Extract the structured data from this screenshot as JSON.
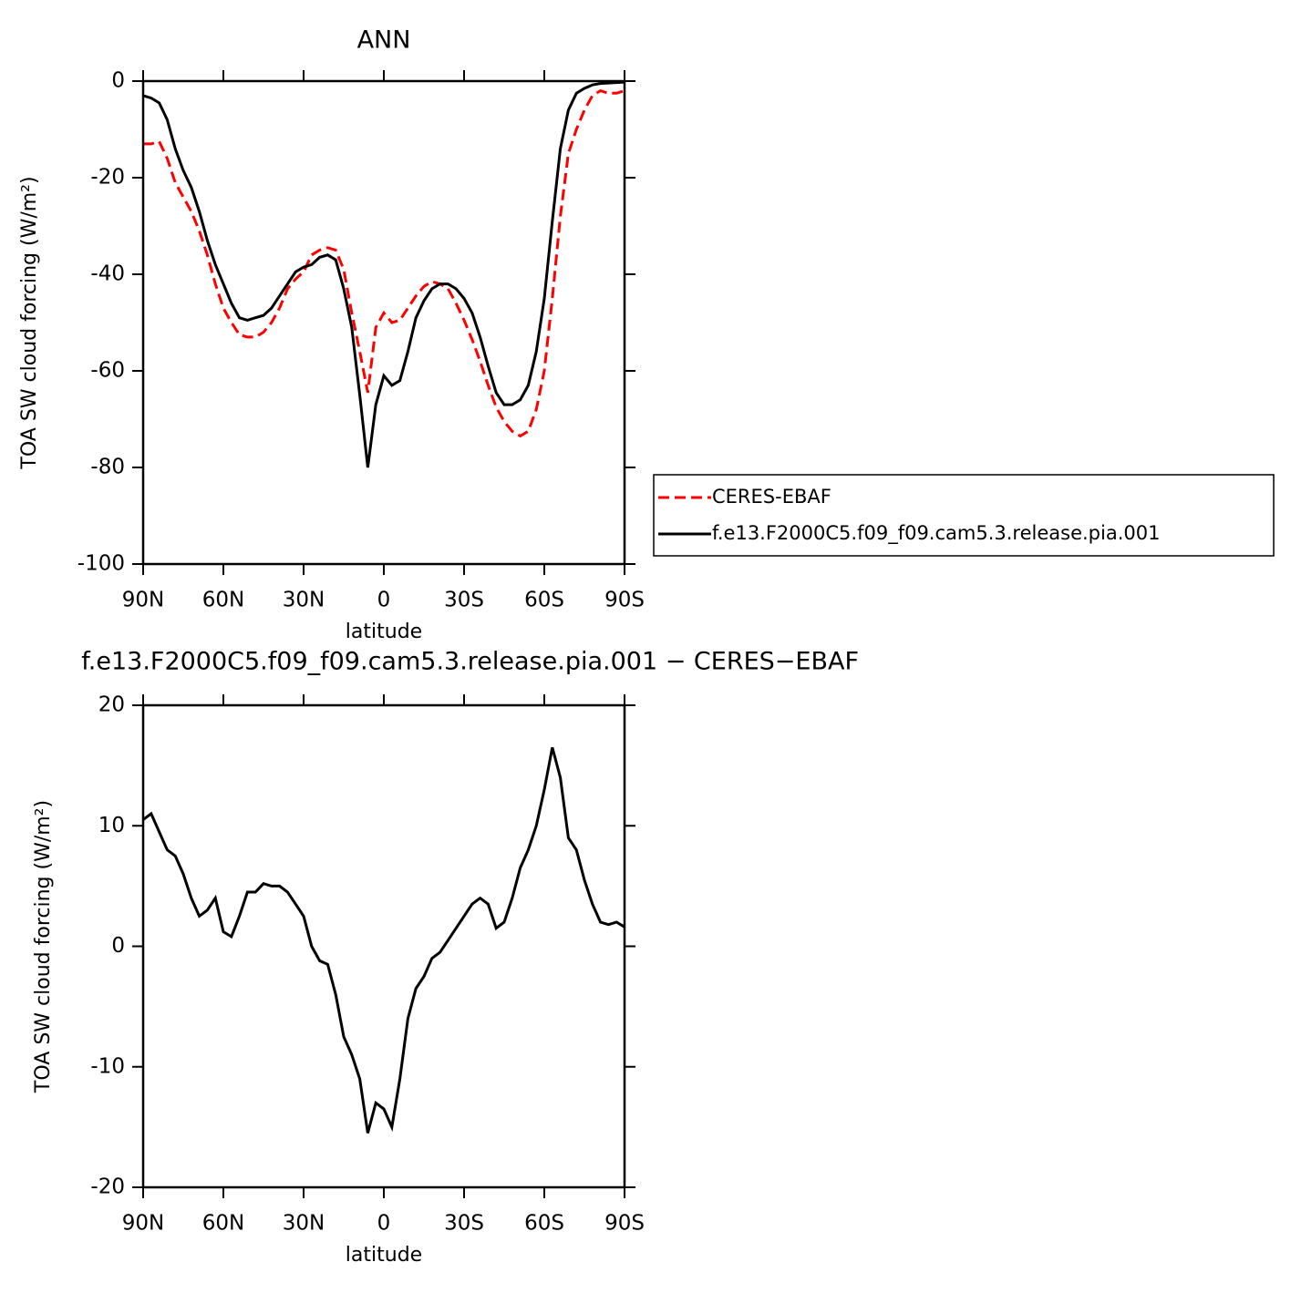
{
  "chart_data": [
    {
      "type": "line",
      "title": "ANN",
      "xlabel": "latitude",
      "ylabel": "TOA SW cloud forcing (W/m²)",
      "x": [
        90,
        87,
        84,
        81,
        78,
        75,
        72,
        69,
        66,
        63,
        60,
        57,
        54,
        51,
        48,
        45,
        42,
        39,
        36,
        33,
        30,
        27,
        24,
        21,
        18,
        15,
        12,
        9,
        6,
        3,
        0,
        -3,
        -6,
        -9,
        -12,
        -15,
        -18,
        -21,
        -24,
        -27,
        -30,
        -33,
        -36,
        -39,
        -42,
        -45,
        -48,
        -51,
        -54,
        -57,
        -60,
        -63,
        -66,
        -69,
        -72,
        -75,
        -78,
        -81,
        -84,
        -87,
        -90
      ],
      "series": [
        {
          "name": "CERES-EBAF",
          "color": "#ff0000",
          "line_style": "dashed",
          "values": [
            -13,
            -13,
            -12.5,
            -16,
            -21,
            -24,
            -27,
            -31,
            -36,
            -42,
            -47,
            -50,
            -52.5,
            -53,
            -53,
            -52,
            -50,
            -47,
            -43,
            -41,
            -39.5,
            -36,
            -35,
            -34.5,
            -35,
            -39,
            -48,
            -56,
            -64.5,
            -51,
            -48,
            -50,
            -49.5,
            -47,
            -44.5,
            -42.5,
            -41.5,
            -42,
            -43,
            -46,
            -49.5,
            -53.5,
            -58,
            -63,
            -67.5,
            -70.5,
            -72.5,
            -73.5,
            -72.5,
            -68,
            -60,
            -45,
            -28,
            -15,
            -10,
            -6,
            -3,
            -2,
            -2.5,
            -2.5,
            -2
          ]
        },
        {
          "name": "f.e13.F2000C5.f09_f09.cam5.3.release.pia.001",
          "color": "#000000",
          "line_style": "solid",
          "values": [
            -3,
            -3.5,
            -4.5,
            -8,
            -14,
            -18.5,
            -22,
            -27,
            -33,
            -38,
            -42,
            -46,
            -49,
            -49.5,
            -49,
            -48.5,
            -47,
            -44.5,
            -42,
            -39.5,
            -38.5,
            -38,
            -36.5,
            -36,
            -37,
            -43,
            -51,
            -65,
            -80,
            -67,
            -61,
            -63,
            -62,
            -56,
            -49,
            -45.5,
            -43,
            -42,
            -42,
            -43,
            -45,
            -48,
            -53,
            -59,
            -64.5,
            -67,
            -67,
            -66,
            -63,
            -56,
            -45,
            -29,
            -14,
            -6,
            -2.5,
            -1.5,
            -0.8,
            -0.5,
            -0.4,
            -0.3,
            -0.2
          ]
        }
      ],
      "xlim": [
        90,
        -90
      ],
      "xticks": [
        {
          "value": 90,
          "label": "90N"
        },
        {
          "value": 60,
          "label": "60N"
        },
        {
          "value": 30,
          "label": "30N"
        },
        0,
        {
          "value": -30,
          "label": "30S"
        },
        {
          "value": -60,
          "label": "60S"
        },
        {
          "value": -90,
          "label": "90S"
        }
      ],
      "ylim": [
        -100,
        0
      ],
      "yticks": [
        -100,
        -80,
        -60,
        -40,
        -20,
        0
      ],
      "legend": "right"
    },
    {
      "type": "line",
      "title": "f.e13.F2000C5.f09_f09.cam5.3.release.pia.001 − CERES−EBAF",
      "xlabel": "latitude",
      "ylabel": "TOA SW cloud forcing (W/m²)",
      "x": [
        90,
        87,
        84,
        81,
        78,
        75,
        72,
        69,
        66,
        63,
        60,
        57,
        54,
        51,
        48,
        45,
        42,
        39,
        36,
        33,
        30,
        27,
        24,
        21,
        18,
        15,
        12,
        9,
        6,
        3,
        0,
        -3,
        -6,
        -9,
        -12,
        -15,
        -18,
        -21,
        -24,
        -27,
        -30,
        -33,
        -36,
        -39,
        -42,
        -45,
        -48,
        -51,
        -54,
        -57,
        -60,
        -63,
        -66,
        -69,
        -72,
        -75,
        -78,
        -81,
        -84,
        -87,
        -90
      ],
      "color": "#000000",
      "values": [
        10.5,
        11,
        9.5,
        8,
        7.5,
        6,
        4,
        2.5,
        3,
        4,
        1.2,
        0.8,
        2.5,
        4.5,
        4.5,
        5.2,
        5,
        5,
        4.5,
        3.5,
        2.5,
        0,
        -1.2,
        -1.5,
        -4,
        -7.5,
        -9,
        -11,
        -15.5,
        -13,
        -13.5,
        -15,
        -11,
        -6,
        -3.5,
        -2.5,
        -1,
        -0.5,
        0.5,
        1.5,
        2.5,
        3.5,
        4,
        3.5,
        1.5,
        2,
        4,
        6.5,
        8,
        10,
        13,
        16.5,
        14,
        9,
        8,
        5.5,
        3.5,
        2,
        1.8,
        2,
        1.6
      ],
      "xlim": [
        90,
        -90
      ],
      "xticks": [
        {
          "value": 90,
          "label": "90N"
        },
        {
          "value": 60,
          "label": "60N"
        },
        {
          "value": 30,
          "label": "30N"
        },
        0,
        {
          "value": -30,
          "label": "30S"
        },
        {
          "value": -60,
          "label": "60S"
        },
        {
          "value": -90,
          "label": "90S"
        }
      ],
      "ylim": [
        -20,
        20
      ],
      "yticks": [
        -20,
        -10,
        0,
        10,
        20
      ]
    }
  ]
}
